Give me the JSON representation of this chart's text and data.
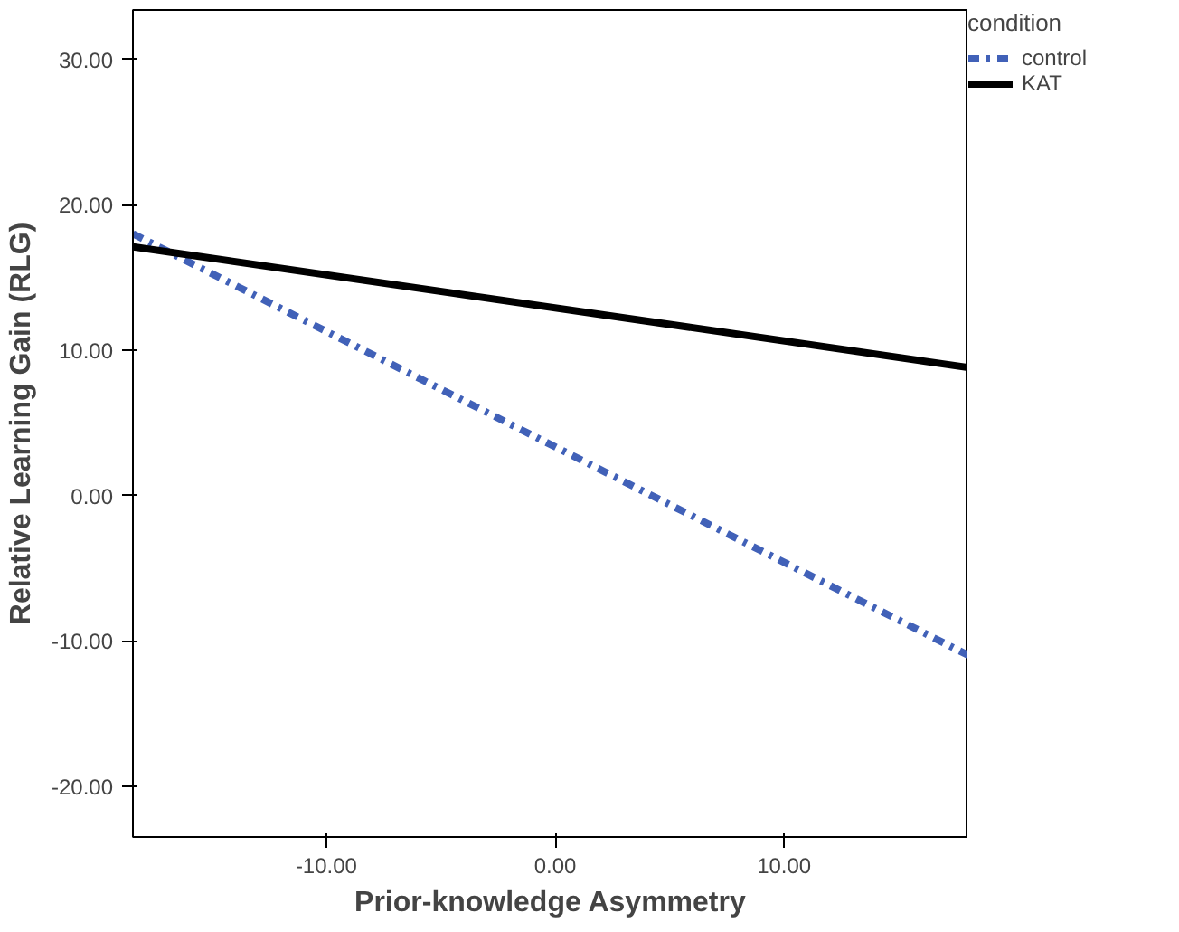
{
  "chart_data": {
    "type": "line",
    "xlabel": "Prior-knowledge Asymmetry",
    "ylabel": "Relative Learning Gain (RLG)",
    "legend_title": "condition",
    "x": [
      -18.45,
      18.05
    ],
    "series": [
      {
        "name": "control",
        "color": "#4161b8",
        "values": [
          18.0,
          -11.0
        ],
        "line_style": "dashdot"
      },
      {
        "name": "KAT",
        "color": "#000000",
        "values": [
          17.1,
          8.8
        ],
        "line_style": "solid"
      }
    ],
    "xlim": [
      -18.45,
      18.05
    ],
    "ylim": [
      -23.5,
      33.4
    ],
    "xticks": [
      {
        "value": -10,
        "label": "-10.00"
      },
      {
        "value": 0,
        "label": "0.00"
      },
      {
        "value": 10,
        "label": "10.00"
      }
    ],
    "yticks": [
      {
        "value": -20,
        "label": "-20.00"
      },
      {
        "value": -10,
        "label": "-10.00"
      },
      {
        "value": 0,
        "label": "0.00"
      },
      {
        "value": 10,
        "label": "10.00"
      },
      {
        "value": 20,
        "label": "20.00"
      },
      {
        "value": 30,
        "label": "30.00"
      }
    ],
    "grid": false,
    "legend": "top right",
    "marker": "none"
  }
}
